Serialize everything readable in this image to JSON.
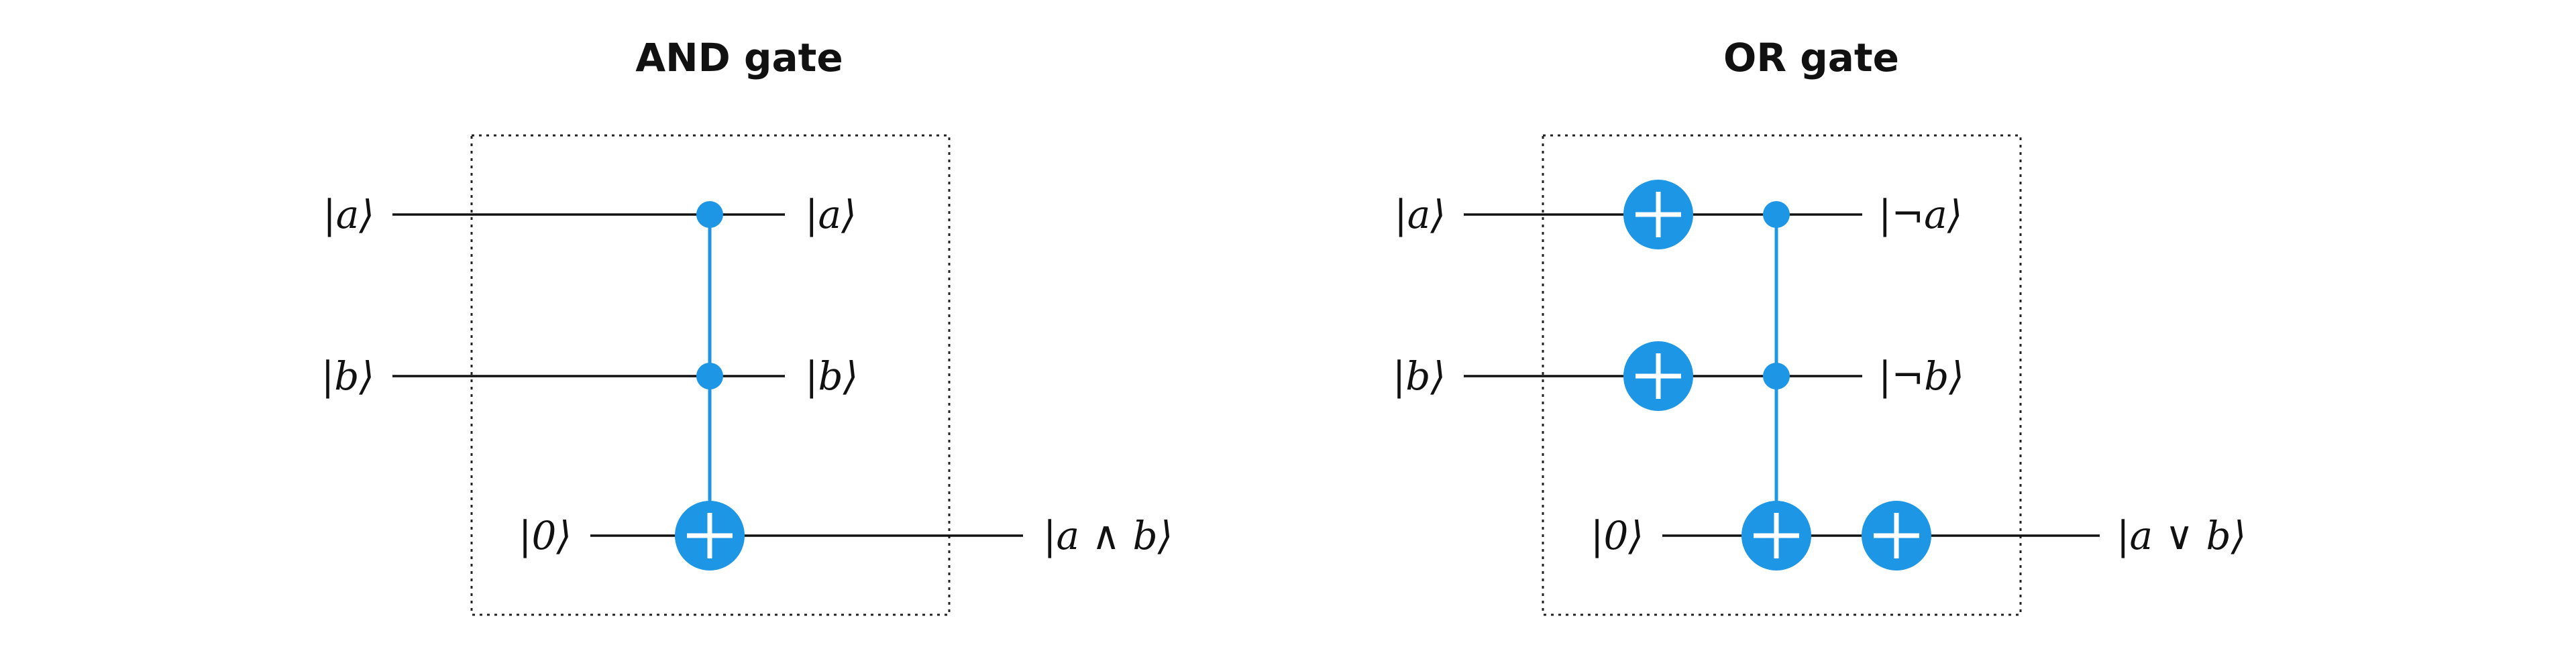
{
  "colors": {
    "gate": "#1E96E6",
    "wire": "#111111",
    "background": "#ffffff"
  },
  "and_gate": {
    "title": "AND gate",
    "inputs": [
      "|a⟩",
      "|b⟩",
      "|0⟩"
    ],
    "outputs": [
      "|a⟩",
      "|b⟩",
      "|a ∧ b⟩"
    ]
  },
  "or_gate": {
    "title": "OR gate",
    "inputs": [
      "|a⟩",
      "|b⟩",
      "|0⟩"
    ],
    "outputs": [
      "|¬a⟩",
      "|¬b⟩",
      "|a ∨ b⟩"
    ]
  }
}
